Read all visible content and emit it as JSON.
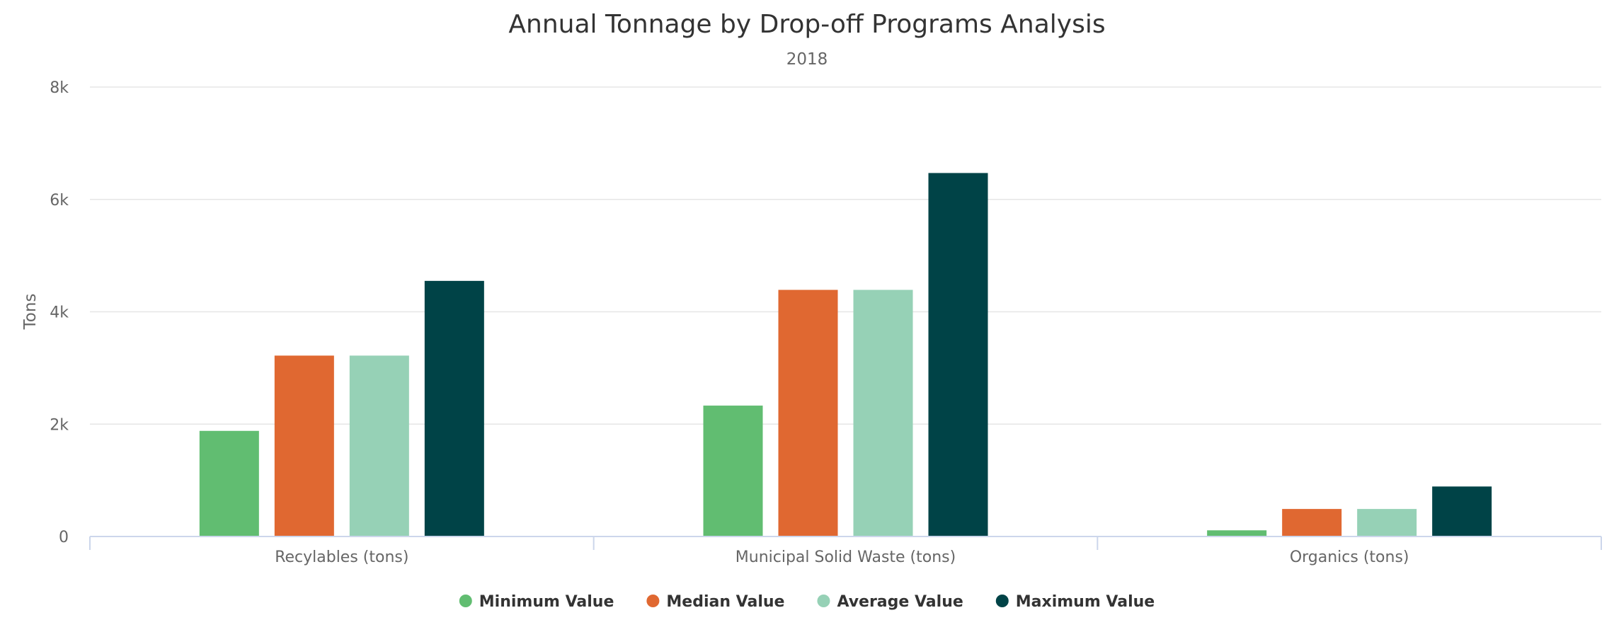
{
  "chart_data": {
    "type": "bar",
    "title": "Annual Tonnage by Drop-off Programs Analysis",
    "subtitle": "2018",
    "xlabel": "",
    "ylabel": "Tons",
    "ylim": [
      0,
      8000
    ],
    "yticks": [
      0,
      2000,
      4000,
      6000,
      8000
    ],
    "ytick_labels": [
      "0",
      "2k",
      "4k",
      "6k",
      "8k"
    ],
    "grid": true,
    "legend_position": "bottom-center",
    "categories": [
      "Recylables (tons)",
      "Municipal Solid Waste (tons)",
      "Organics (tons)"
    ],
    "series": [
      {
        "name": "Minimum Value",
        "color": "#61bd71",
        "values": [
          1880,
          2330,
          110
        ]
      },
      {
        "name": "Median Value",
        "color": "#e06831",
        "values": [
          3220,
          4390,
          490
        ]
      },
      {
        "name": "Average Value",
        "color": "#96d1b6",
        "values": [
          3220,
          4390,
          490
        ]
      },
      {
        "name": "Maximum Value",
        "color": "#004347",
        "values": [
          4550,
          6470,
          890
        ]
      }
    ]
  }
}
